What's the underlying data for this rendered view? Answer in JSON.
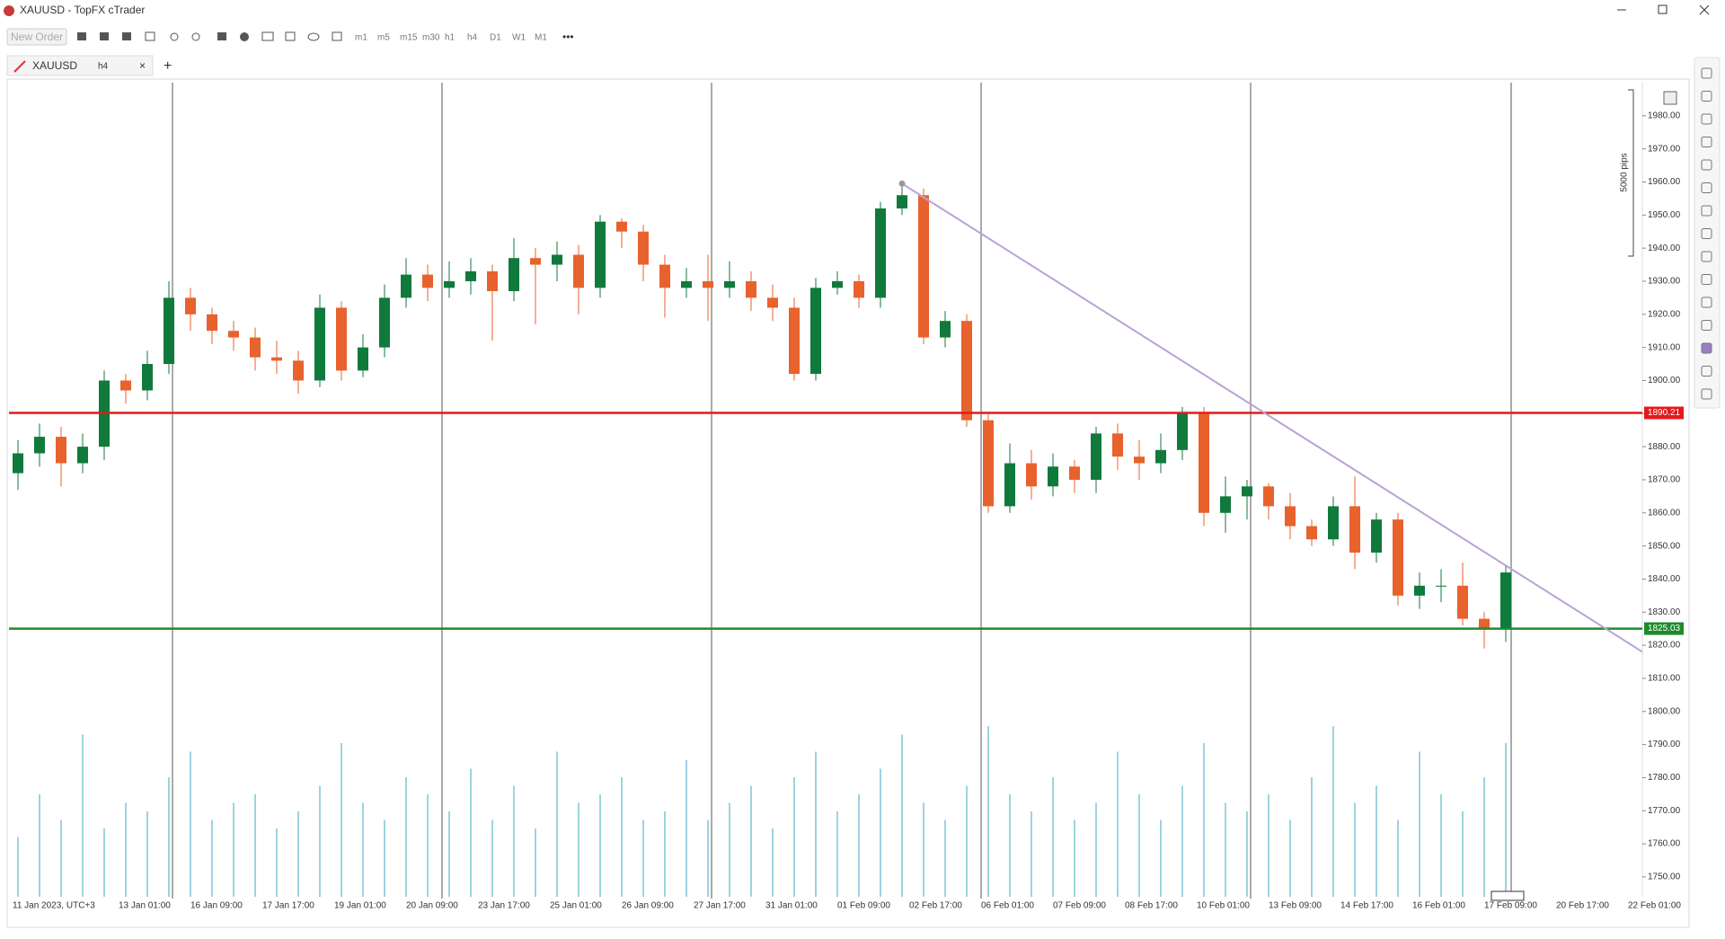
{
  "ui": {
    "window_title": "XAUUSD - TopFX cTrader",
    "new_order": "New Order",
    "timeframes": [
      "m1",
      "m5",
      "m15",
      "m30",
      "h1",
      "h4",
      "D1",
      "W1",
      "M1"
    ]
  },
  "chart_data": {
    "type": "candlestick",
    "symbol": "XAUUSD",
    "timeframe": "h4",
    "ylim": [
      1744,
      1990
    ],
    "yticks": [
      {
        "value": 1750,
        "label": "1750.00"
      },
      {
        "value": 1760,
        "label": "1760.00"
      },
      {
        "value": 1770,
        "label": "1770.00"
      },
      {
        "value": 1780,
        "label": "1780.00"
      },
      {
        "value": 1790,
        "label": "1790.00"
      },
      {
        "value": 1800,
        "label": "1800.00"
      },
      {
        "value": 1810,
        "label": "1810.00"
      },
      {
        "value": 1820,
        "label": "1820.00"
      },
      {
        "value": 1830,
        "label": "1830.00"
      },
      {
        "value": 1840,
        "label": "1840.00"
      },
      {
        "value": 1850,
        "label": "1850.00"
      },
      {
        "value": 1860,
        "label": "1860.00"
      },
      {
        "value": 1870,
        "label": "1870.00"
      },
      {
        "value": 1880,
        "label": "1880.00"
      },
      {
        "value": 1890,
        "label": "1890.00"
      },
      {
        "value": 1900,
        "label": "1900.00"
      },
      {
        "value": 1910,
        "label": "1910.00"
      },
      {
        "value": 1920,
        "label": "1920.00"
      },
      {
        "value": 1930,
        "label": "1930.00"
      },
      {
        "value": 1940,
        "label": "1940.00"
      },
      {
        "value": 1950,
        "label": "1950.00"
      },
      {
        "value": 1960,
        "label": "1960.00"
      },
      {
        "value": 1970,
        "label": "1970.00"
      },
      {
        "value": 1980,
        "label": "1980.00"
      }
    ],
    "x_labels": [
      "11 Jan 2023, UTC+3",
      "13 Jan 01:00",
      "16 Jan 09:00",
      "17 Jan 17:00",
      "19 Jan 01:00",
      "20 Jan 09:00",
      "23 Jan 17:00",
      "25 Jan 01:00",
      "26 Jan 09:00",
      "27 Jan 17:00",
      "31 Jan 01:00",
      "01 Feb 09:00",
      "02 Feb 17:00",
      "06 Feb 01:00",
      "07 Feb 09:00",
      "08 Feb 17:00",
      "10 Feb 01:00",
      "13 Feb 09:00",
      "14 Feb 17:00",
      "16 Feb 01:00",
      "17 Feb 09:00",
      "20 Feb 17:00",
      "22 Feb 01:00"
    ],
    "open": [
      1872,
      1878,
      1883,
      1875,
      1880,
      1900,
      1897,
      1905,
      1925,
      1920,
      1915,
      1913,
      1907,
      1906,
      1900,
      1922,
      1903,
      1910,
      1925,
      1932,
      1928,
      1930,
      1933,
      1927,
      1937,
      1935,
      1938,
      1928,
      1948,
      1945,
      1935,
      1928,
      1930,
      1928,
      1930,
      1925,
      1922,
      1902,
      1928,
      1930,
      1925,
      1952,
      1956,
      1913,
      1918,
      1888,
      1862,
      1875,
      1868,
      1874,
      1870,
      1884,
      1877,
      1875,
      1879,
      1890,
      1860,
      1865,
      1868,
      1862,
      1856,
      1852,
      1862,
      1848,
      1858,
      1835,
      1838,
      1838,
      1828,
      1825
    ],
    "high": [
      1882,
      1887,
      1886,
      1884,
      1903,
      1902,
      1909,
      1930,
      1928,
      1922,
      1918,
      1916,
      1912,
      1909,
      1926,
      1924,
      1914,
      1929,
      1937,
      1935,
      1936,
      1937,
      1935,
      1943,
      1940,
      1942,
      1941,
      1950,
      1949,
      1947,
      1938,
      1934,
      1938,
      1936,
      1933,
      1929,
      1925,
      1931,
      1933,
      1932,
      1954,
      1960,
      1958,
      1921,
      1920,
      1890,
      1881,
      1879,
      1878,
      1876,
      1886,
      1887,
      1882,
      1884,
      1892,
      1892,
      1871,
      1870,
      1869,
      1866,
      1858,
      1865,
      1871,
      1860,
      1860,
      1842,
      1843,
      1845,
      1830,
      1844
    ],
    "low": [
      1867,
      1874,
      1868,
      1872,
      1876,
      1893,
      1894,
      1902,
      1915,
      1911,
      1909,
      1903,
      1902,
      1896,
      1898,
      1900,
      1901,
      1907,
      1922,
      1924,
      1925,
      1926,
      1912,
      1924,
      1917,
      1930,
      1920,
      1925,
      1940,
      1930,
      1919,
      1925,
      1918,
      1925,
      1921,
      1918,
      1900,
      1900,
      1926,
      1922,
      1922,
      1950,
      1911,
      1910,
      1886,
      1860,
      1860,
      1864,
      1865,
      1866,
      1866,
      1873,
      1870,
      1872,
      1876,
      1856,
      1854,
      1858,
      1858,
      1852,
      1850,
      1850,
      1843,
      1845,
      1832,
      1831,
      1833,
      1826,
      1819,
      1821
    ],
    "close": [
      1878,
      1883,
      1875,
      1880,
      1900,
      1897,
      1905,
      1925,
      1920,
      1915,
      1913,
      1907,
      1906,
      1900,
      1922,
      1903,
      1910,
      1925,
      1932,
      1928,
      1930,
      1933,
      1927,
      1937,
      1935,
      1938,
      1928,
      1948,
      1945,
      1935,
      1928,
      1930,
      1928,
      1930,
      1925,
      1922,
      1902,
      1928,
      1930,
      1925,
      1952,
      1956,
      1913,
      1918,
      1888,
      1862,
      1875,
      1868,
      1874,
      1870,
      1884,
      1877,
      1875,
      1879,
      1890,
      1860,
      1865,
      1868,
      1862,
      1856,
      1852,
      1862,
      1848,
      1858,
      1835,
      1838,
      1838,
      1828,
      1825,
      1842
    ],
    "volume": [
      35,
      60,
      45,
      95,
      40,
      55,
      50,
      70,
      85,
      45,
      55,
      60,
      40,
      50,
      65,
      90,
      55,
      45,
      70,
      60,
      50,
      75,
      45,
      65,
      40,
      85,
      55,
      60,
      70,
      45,
      50,
      80,
      45,
      55,
      65,
      40,
      70,
      85,
      50,
      60,
      75,
      95,
      55,
      45,
      65,
      100,
      60,
      50,
      70,
      45,
      55,
      85,
      60,
      45,
      65,
      90,
      55,
      50,
      60,
      45,
      70,
      100,
      55,
      65,
      45,
      85,
      60,
      50,
      70,
      90
    ],
    "up_color": "#107a3c",
    "down_color": "#e8622e",
    "volume_color": "#7cc4d6",
    "levels": [
      {
        "price": 1890.21,
        "color": "#e31a1c"
      },
      {
        "price": 1825.03,
        "color": "#1f8a2b"
      }
    ],
    "trendline": {
      "start": 1959.5,
      "end": 1818,
      "color": "#b9a2d6"
    },
    "ruler_label": "5000 pips"
  }
}
